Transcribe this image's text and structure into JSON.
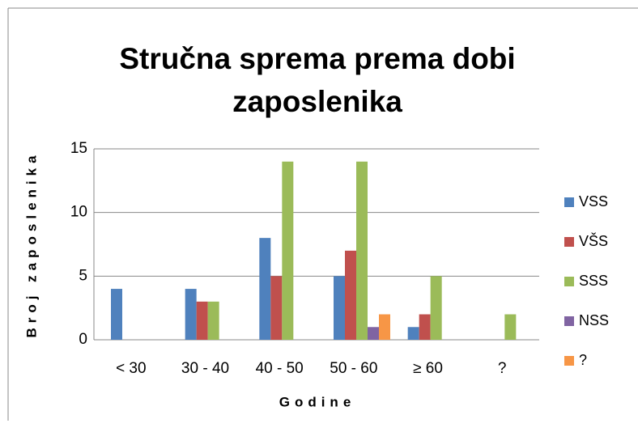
{
  "chart_data": {
    "type": "bar",
    "title": [
      "Stručna sprema prema dobi",
      "zaposlenika"
    ],
    "x_label": "Godine",
    "y_label": "Broj zaposlenika",
    "categories": [
      "< 30",
      "30 - 40",
      "40 - 50",
      "50 - 60",
      "≥ 60",
      "?"
    ],
    "series": [
      {
        "name": "VSS",
        "color": "#4f81bd",
        "values": [
          4,
          4,
          8,
          5,
          1,
          0
        ]
      },
      {
        "name": "VŠS",
        "color": "#c0504d",
        "values": [
          0,
          3,
          5,
          7,
          2,
          0
        ]
      },
      {
        "name": "SSS",
        "color": "#9bbb59",
        "values": [
          0,
          3,
          14,
          14,
          5,
          2
        ]
      },
      {
        "name": "NSS",
        "color": "#8064a2",
        "values": [
          0,
          0,
          0,
          1,
          0,
          0
        ]
      },
      {
        "name": "?",
        "color": "#f79646",
        "values": [
          0,
          0,
          0,
          2,
          0,
          0
        ]
      }
    ],
    "ylim": [
      0,
      15
    ],
    "yticks": [
      0,
      5,
      10,
      15
    ],
    "grid": true,
    "legend": "right"
  }
}
